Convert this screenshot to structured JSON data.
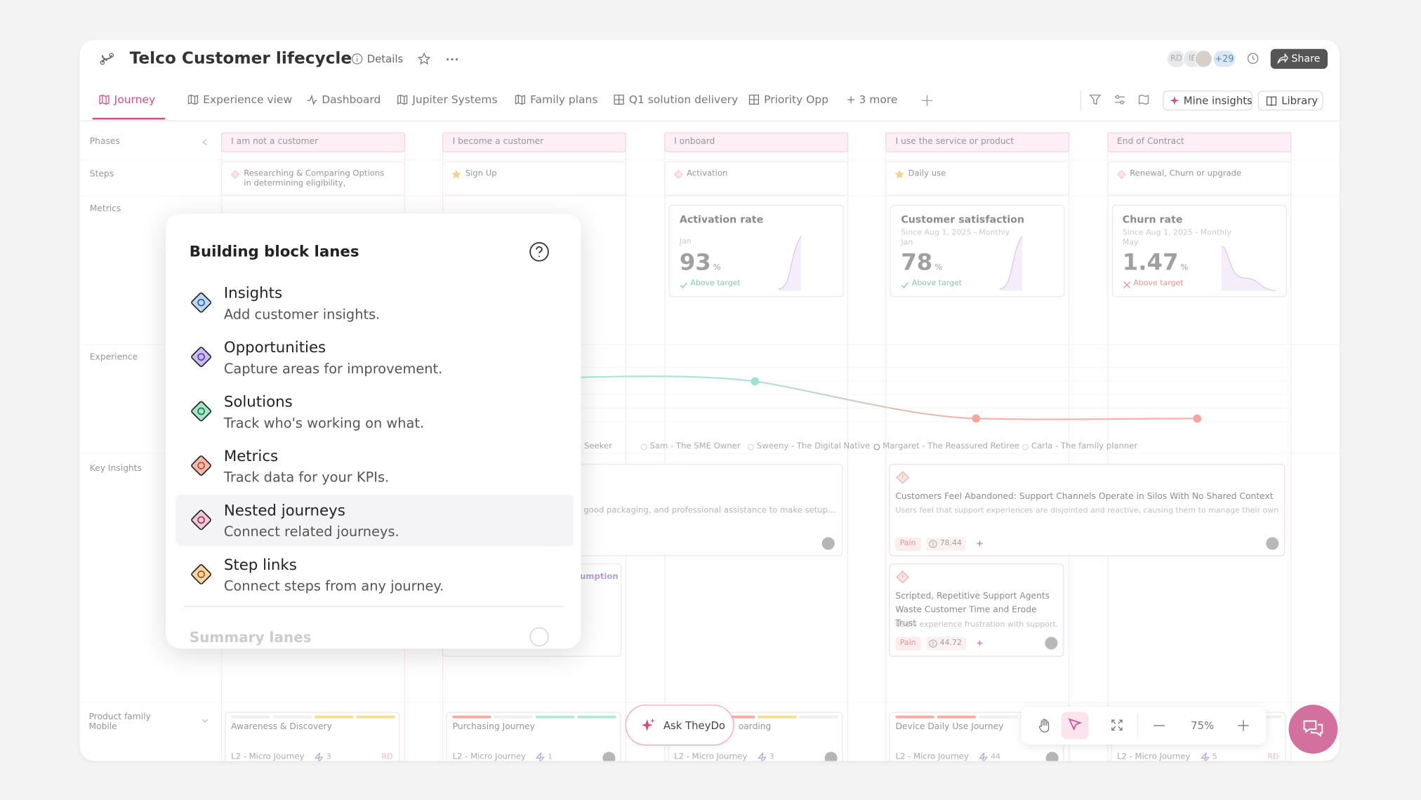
{
  "header": {
    "title": "Telco Customer lifecycle",
    "details": "Details",
    "avatars": [
      "RD",
      "IB"
    ],
    "more_count": "+29",
    "share": "Share"
  },
  "tabs": [
    "Journey",
    "Experience view",
    "Dashboard",
    "Jupiter Systems",
    "Family plans",
    "Q1 solution delivery",
    "Priority Opp",
    "+ 3 more"
  ],
  "toolbar": {
    "mine_insights": "Mine insights",
    "library": "Library"
  },
  "lanes": [
    "Phases",
    "Steps",
    "Metrics",
    "Experience",
    "Key Insights"
  ],
  "product_lane": [
    "Product family",
    "Mobile"
  ],
  "phases": [
    "I am not a customer",
    "I become a customer",
    "I onboard",
    "I use the service or product",
    "End of Contract"
  ],
  "steps": [
    "Researching & Comparing Options in determining eligibility,",
    "Sign Up",
    "Activation",
    "Daily use",
    "Renewal, Churn or upgrade"
  ],
  "metrics": [
    {
      "title": "Activation rate",
      "period": "Jan",
      "value": "93",
      "unit": "%",
      "status": "Above target"
    },
    {
      "title": "Customer satisfaction",
      "since": "Since Aug 1, 2025 - Monthly",
      "period": "Jan",
      "value": "78",
      "unit": "%",
      "status": "Above target"
    },
    {
      "title": "Churn rate",
      "since": "Since Aug 1, 2025 - Monthly",
      "period": "May",
      "value": "1.47",
      "unit": "%",
      "status": "Above target"
    }
  ],
  "personas": [
    "Value Seeker",
    "Sam - The SME Owner",
    "Sweeny - The Digital Native",
    "Margaret - The Reassured Retiree",
    "Carla - The family planner"
  ],
  "insights": [
    {
      "description": "good packaging, and professional assistance to make setup..."
    },
    {
      "title": "Customers Feel Abandoned: Support Channels Operate in Silos With No Shared Context",
      "description": "Users feel that support experiences are disjointed and reactive, causing them to manage their own...",
      "tag": "Pain",
      "score": "78.44"
    },
    {
      "title": "Scripted, Repetitive Support Agents Waste Customer Time and Erode Trust",
      "description": "Users experience frustration with support...",
      "tag": "Pain",
      "score": "44.72"
    }
  ],
  "clipped_label": "umption",
  "journeys": [
    {
      "title": "Awareness & Discovery",
      "level": "L2 - Micro Journey",
      "count": "3",
      "owner": "RD"
    },
    {
      "title": "Purchasing Journey",
      "level": "L2 - Micro Journey",
      "count": "1"
    },
    {
      "title": "oarding",
      "level": "L2 - Micro Journey",
      "count": "3"
    },
    {
      "title": "Device Daily Use Journey",
      "level": "L2 - Micro Journey",
      "count": "44"
    },
    {
      "level": "L2 - Micro Journey",
      "count": "5",
      "owner": "RD"
    }
  ],
  "ask": "Ask TheyDo",
  "zoom": "75%",
  "popup": {
    "title": "Building block lanes",
    "items": [
      {
        "title": "Insights",
        "description": "Add customer insights."
      },
      {
        "title": "Opportunities",
        "description": "Capture areas for improvement."
      },
      {
        "title": "Solutions",
        "description": "Track who's working on what."
      },
      {
        "title": "Metrics",
        "description": "Track data for your KPIs."
      },
      {
        "title": "Nested journeys",
        "description": "Connect related journeys."
      },
      {
        "title": "Step links",
        "description": "Connect steps from any journey."
      }
    ],
    "next_section": "Summary lanes"
  }
}
